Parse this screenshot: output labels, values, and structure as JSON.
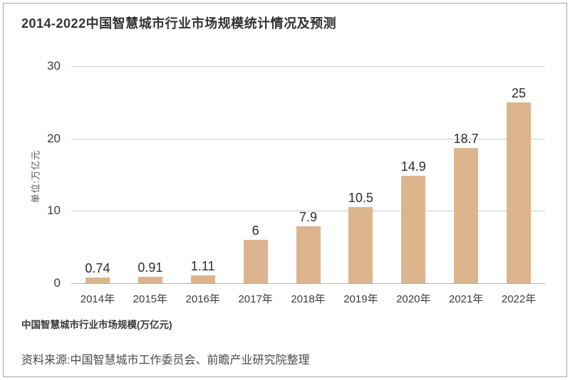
{
  "title": "2014-2022中国智慧城市行业市场规模统计情况及预测",
  "y_axis_unit_label": "单位:万亿元",
  "legend_label": "中国智慧城市行业市场规模(万亿元)",
  "source_note": "资料来源:中国智慧城市工作委员会、前瞻产业研究院整理",
  "colors": {
    "bar": "#dcb48e",
    "grid": "#cdcdcd",
    "axis_baseline": "#b3b3b3",
    "text": "#333333"
  },
  "chart_data": {
    "type": "bar",
    "title": "2014-2022中国智慧城市行业市场规模统计情况及预测",
    "categories": [
      "2014年",
      "2015年",
      "2016年",
      "2017年",
      "2018年",
      "2019年",
      "2020年",
      "2021年",
      "2022年"
    ],
    "values": [
      0.74,
      0.91,
      1.11,
      6,
      7.9,
      10.5,
      14.9,
      18.7,
      25
    ],
    "data_labels": [
      "0.74",
      "0.91",
      "1.11",
      "6",
      "7.9",
      "10.5",
      "14.9",
      "18.7",
      "25"
    ],
    "xlabel": "",
    "ylabel": "单位:万亿元",
    "ylim": [
      0,
      30
    ],
    "yticks": [
      0,
      10,
      20,
      30
    ],
    "grid": true,
    "legend_position": "none"
  }
}
